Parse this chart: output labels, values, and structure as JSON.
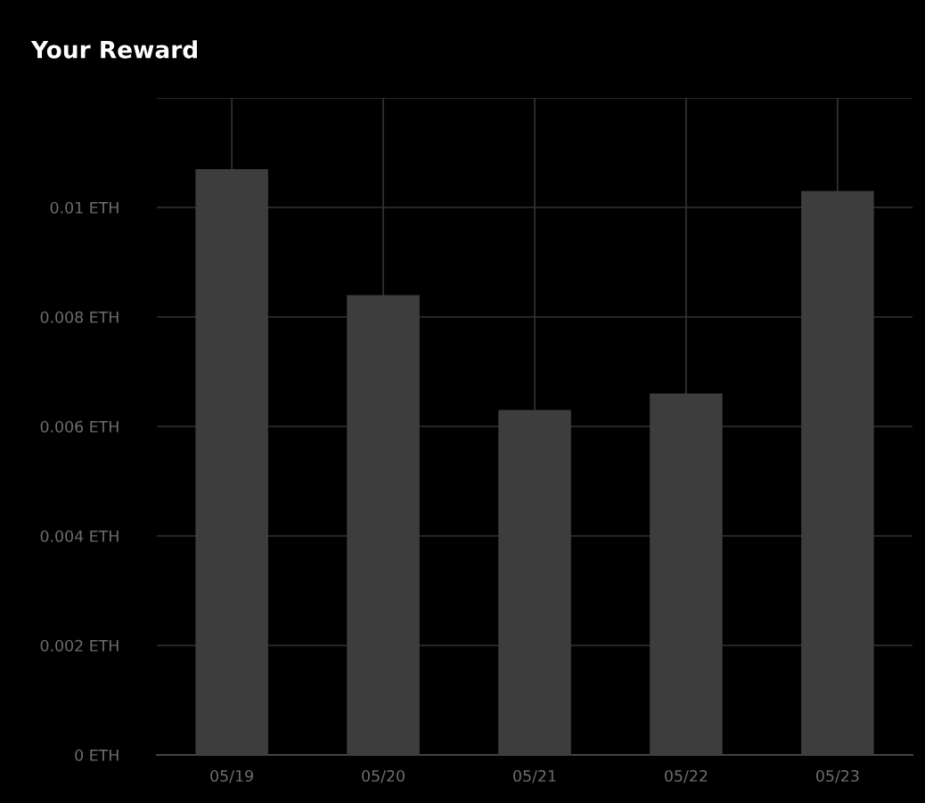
{
  "chart_data": {
    "type": "bar",
    "title": "Your Reward",
    "categories": [
      "05/19",
      "05/20",
      "05/21",
      "05/22",
      "05/23"
    ],
    "values": [
      0.0107,
      0.0084,
      0.0063,
      0.0066,
      0.0103
    ],
    "color": "#3d3d3d",
    "ylim": [
      0,
      0.012
    ],
    "yticks": [
      {
        "value": 0,
        "label": "0 ETH"
      },
      {
        "value": 0.002,
        "label": "0.002 ETH"
      },
      {
        "value": 0.004,
        "label": "0.004 ETH"
      },
      {
        "value": 0.006,
        "label": "0.006 ETH"
      },
      {
        "value": 0.008,
        "label": "0.008 ETH"
      },
      {
        "value": 0.01,
        "label": "0.01 ETH"
      },
      {
        "value": 0.012,
        "label": null
      }
    ],
    "grid": true
  }
}
